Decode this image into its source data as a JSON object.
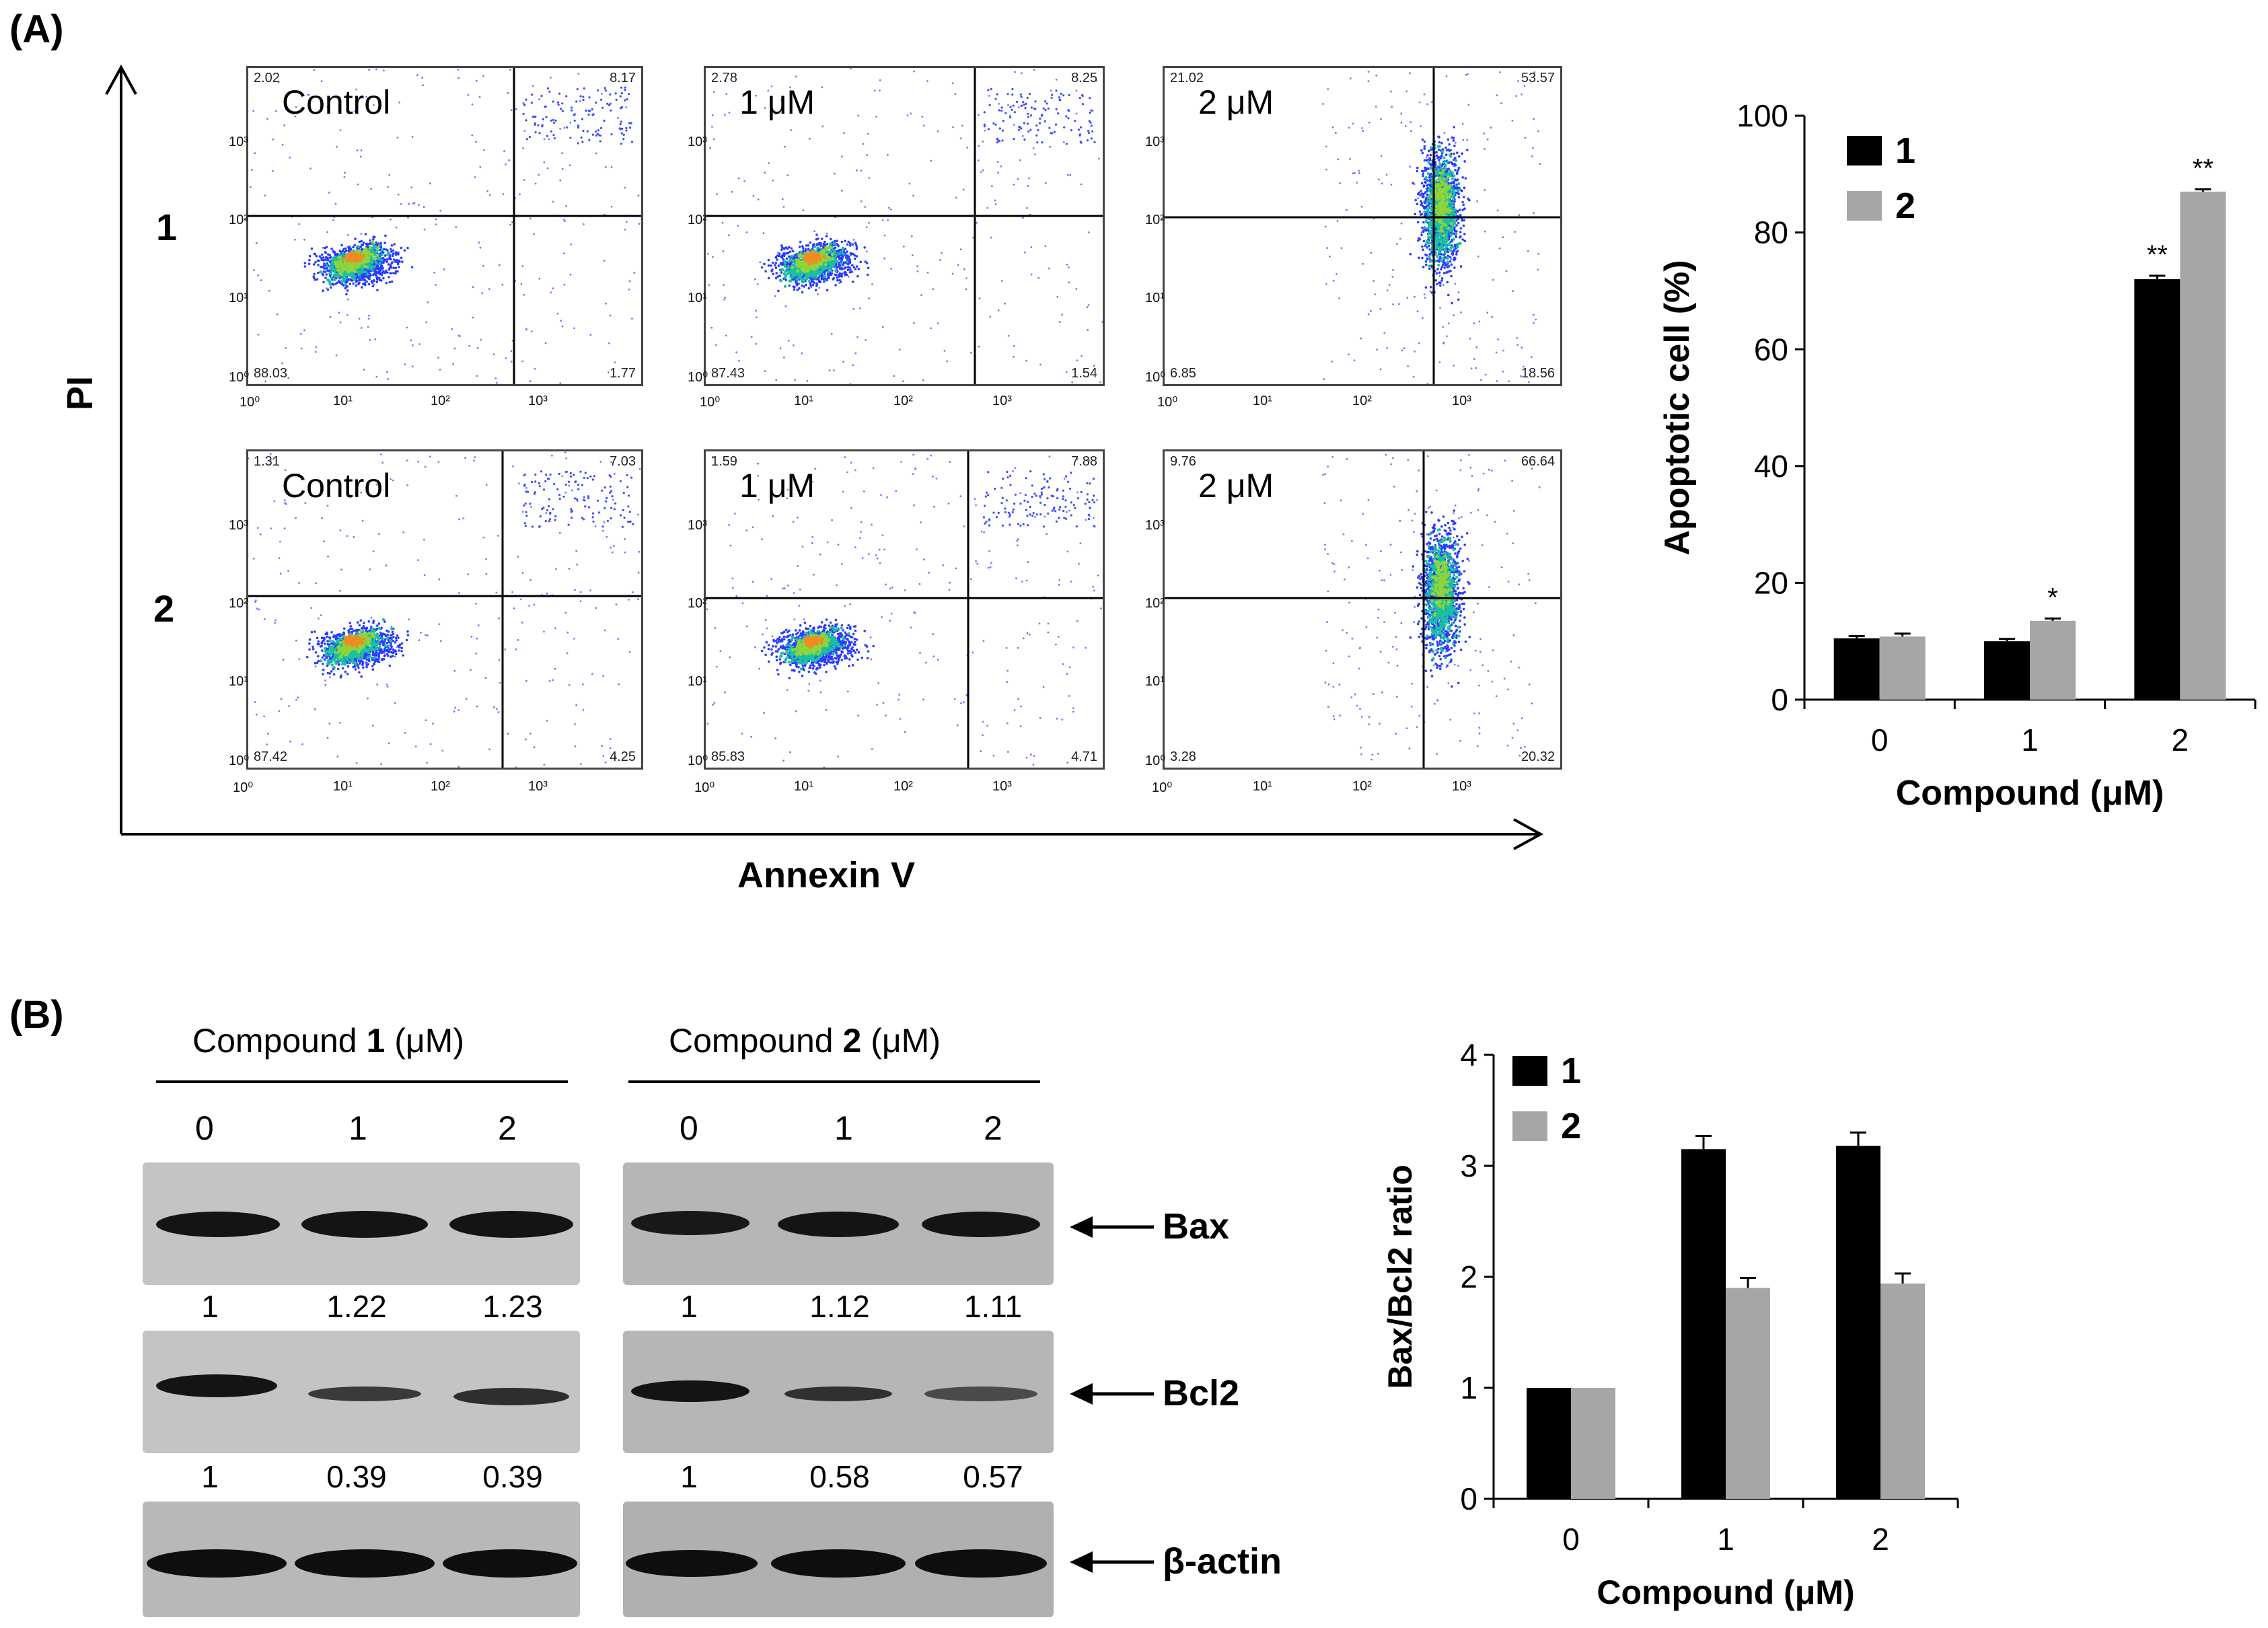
{
  "panel_a_label": "(A)",
  "panel_b_label": "(B)",
  "flow": {
    "y_axis_label": "PI",
    "x_axis_label": "Annexin V",
    "log_ticks": [
      "10⁰",
      "10¹",
      "10²",
      "10³"
    ],
    "rows": [
      {
        "label": "1",
        "plots": [
          {
            "condition": "Control",
            "ul": "2.02",
            "ur": "8.17",
            "ll": "88.03",
            "lr": "1.77"
          },
          {
            "condition": "1 μM",
            "ul": "2.78",
            "ur": "8.25",
            "ll": "87.43",
            "lr": "1.54"
          },
          {
            "condition": "2 μM",
            "ul": "21.02",
            "ur": "53.57",
            "ll": "6.85",
            "lr": "18.56"
          }
        ]
      },
      {
        "label": "2",
        "plots": [
          {
            "condition": "Control",
            "ul": "1.31",
            "ur": "7.03",
            "ll": "87.42",
            "lr": "4.25"
          },
          {
            "condition": "1 μM",
            "ul": "1.59",
            "ur": "7.88",
            "ll": "85.83",
            "lr": "4.71"
          },
          {
            "condition": "2 μM",
            "ul": "9.76",
            "ur": "66.64",
            "ll": "3.28",
            "lr": "20.32"
          }
        ]
      }
    ]
  },
  "western": {
    "compound1_prefix": "Compound ",
    "compound1_bold": "1",
    "compound1_suffix": " (μM)",
    "compound2_prefix": "Compound ",
    "compound2_bold": "2",
    "compound2_suffix": " (μM)",
    "doses": [
      "0",
      "1",
      "2"
    ],
    "bax_label": "Bax",
    "bcl2_label": "Bcl2",
    "actin_label": "β-actin",
    "bax_values_1": [
      "1",
      "1.22",
      "1.23"
    ],
    "bax_values_2": [
      "1",
      "1.12",
      "1.11"
    ],
    "bcl2_values_1": [
      "1",
      "0.39",
      "0.39"
    ],
    "bcl2_values_2": [
      "1",
      "0.58",
      "0.57"
    ]
  },
  "colors": {
    "series1": "#000000",
    "series2": "#a6a6a6",
    "blot_bg": "#bdbdbd",
    "band": "#151515"
  },
  "chart_data": [
    {
      "type": "bar",
      "title": "",
      "categories": [
        "0",
        "1",
        "2"
      ],
      "series": [
        {
          "name": "1",
          "values": [
            10.5,
            10,
            72
          ],
          "errors": [
            0.4,
            0.4,
            0.6
          ]
        },
        {
          "name": "2",
          "values": [
            10.8,
            13.5,
            87
          ],
          "errors": [
            0.5,
            0.4,
            0.4
          ]
        }
      ],
      "annotations": [
        {
          "category": "1",
          "series": "2",
          "text": "*"
        },
        {
          "category": "2",
          "series": "1",
          "text": "**"
        },
        {
          "category": "2",
          "series": "2",
          "text": "**"
        }
      ],
      "xlabel": "Compound (μM)",
      "ylabel": "Apoptotic cell (%)",
      "ylim": [
        0,
        100
      ],
      "yticks": [
        "0",
        "20",
        "40",
        "60",
        "80",
        "100"
      ],
      "legend": "top-left"
    },
    {
      "type": "bar",
      "title": "",
      "categories": [
        "0",
        "1",
        "2"
      ],
      "series": [
        {
          "name": "1",
          "values": [
            1.0,
            3.15,
            3.18
          ],
          "errors": [
            0.0,
            0.12,
            0.12
          ]
        },
        {
          "name": "2",
          "values": [
            1.0,
            1.9,
            1.94
          ],
          "errors": [
            0.0,
            0.09,
            0.09
          ]
        }
      ],
      "xlabel": "Compound (μM)",
      "ylabel": "Bax/Bcl2 ratio",
      "ylim": [
        0,
        4
      ],
      "yticks": [
        "0",
        "1",
        "2",
        "3",
        "4"
      ],
      "legend": "top-left"
    }
  ]
}
